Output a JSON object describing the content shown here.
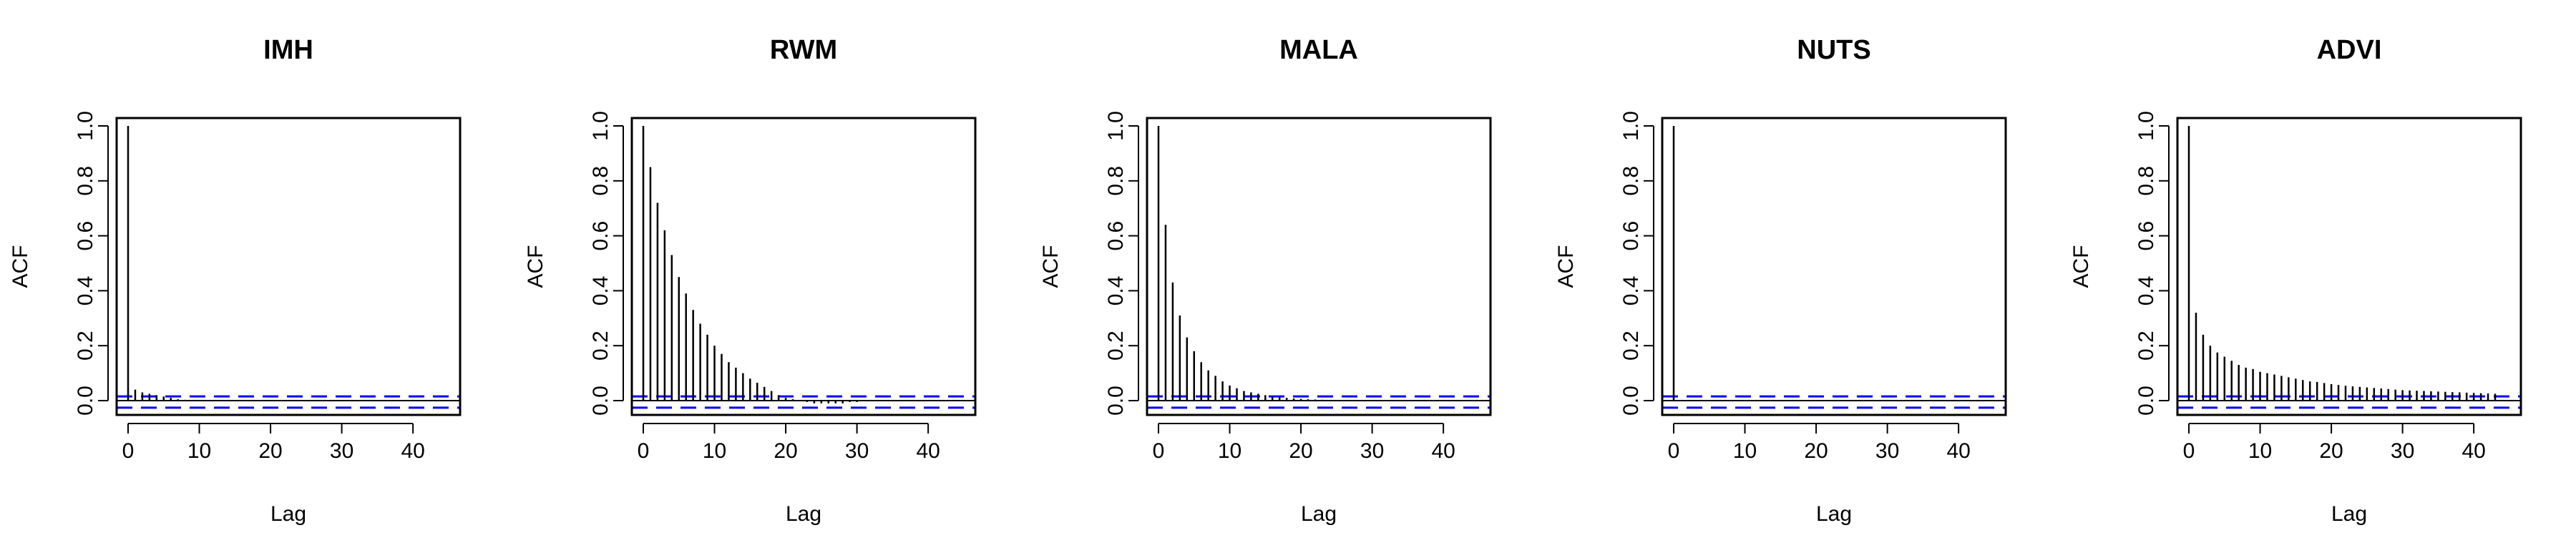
{
  "chart_data": [
    {
      "type": "bar",
      "title": "IMH",
      "xlabel": "Lag",
      "ylabel": "ACF",
      "xlim": [
        0,
        43
      ],
      "ylim": [
        0,
        1.0
      ],
      "x_ticks": [
        0,
        10,
        20,
        30,
        40
      ],
      "y_ticks": [
        0.0,
        0.2,
        0.4,
        0.6,
        0.8,
        1.0
      ],
      "confidence_band": 0.01,
      "lags": [
        0,
        1,
        2,
        3,
        4,
        5,
        6,
        7,
        8,
        9,
        10,
        11,
        12,
        13,
        14,
        15,
        16,
        17,
        18,
        19,
        20,
        21,
        22,
        23,
        24,
        25,
        26,
        27,
        28,
        29,
        30,
        31,
        32,
        33,
        34,
        35,
        36,
        37,
        38,
        39,
        40,
        41,
        42,
        43
      ],
      "values": [
        1.0,
        0.04,
        0.03,
        0.025,
        0.02,
        0.015,
        0.01,
        0.005,
        0.003,
        0.002,
        0.0,
        0.0,
        0.0,
        0.0,
        0.0,
        0.0,
        0.0,
        0.0,
        0.0,
        0.0,
        0.0,
        0.0,
        0.0,
        0.0,
        0.0,
        0.0,
        0.0,
        0.0,
        0.0,
        0.0,
        0.0,
        0.0,
        0.0,
        0.0,
        0.0,
        0.0,
        0.0,
        0.0,
        0.0,
        0.0,
        0.0,
        0.0,
        0.0,
        0.0
      ],
      "colors": {
        "bars": "#000000",
        "band": "#0000ff",
        "zero": "#000000"
      }
    },
    {
      "type": "bar",
      "title": "RWM",
      "xlabel": "Lag",
      "ylabel": "ACF",
      "xlim": [
        0,
        43
      ],
      "ylim": [
        0,
        1.0
      ],
      "x_ticks": [
        0,
        10,
        20,
        30,
        40
      ],
      "y_ticks": [
        0.0,
        0.2,
        0.4,
        0.6,
        0.8,
        1.0
      ],
      "confidence_band": 0.01,
      "lags": [
        0,
        1,
        2,
        3,
        4,
        5,
        6,
        7,
        8,
        9,
        10,
        11,
        12,
        13,
        14,
        15,
        16,
        17,
        18,
        19,
        20,
        21,
        22,
        23,
        24,
        25,
        26,
        27,
        28,
        29,
        30,
        31,
        32,
        33,
        34,
        35,
        36,
        37,
        38,
        39,
        40,
        41,
        42,
        43
      ],
      "values": [
        1.0,
        0.85,
        0.72,
        0.62,
        0.53,
        0.45,
        0.39,
        0.33,
        0.28,
        0.24,
        0.2,
        0.17,
        0.14,
        0.12,
        0.1,
        0.08,
        0.065,
        0.05,
        0.035,
        0.02,
        0.01,
        0.005,
        0.0,
        -0.005,
        -0.01,
        -0.01,
        -0.01,
        -0.01,
        -0.01,
        -0.005,
        -0.005,
        0.0,
        0.0,
        0.0,
        0.0,
        0.0,
        0.0,
        0.0,
        0.0,
        0.0,
        0.0,
        0.0,
        0.0,
        0.0
      ],
      "colors": {
        "bars": "#000000",
        "band": "#0000ff",
        "zero": "#000000"
      }
    },
    {
      "type": "bar",
      "title": "MALA",
      "xlabel": "Lag",
      "ylabel": "ACF",
      "xlim": [
        0,
        43
      ],
      "ylim": [
        0,
        1.0
      ],
      "x_ticks": [
        0,
        10,
        20,
        30,
        40
      ],
      "y_ticks": [
        0.0,
        0.2,
        0.4,
        0.6,
        0.8,
        1.0
      ],
      "confidence_band": 0.01,
      "lags": [
        0,
        1,
        2,
        3,
        4,
        5,
        6,
        7,
        8,
        9,
        10,
        11,
        12,
        13,
        14,
        15,
        16,
        17,
        18,
        19,
        20,
        21,
        22,
        23,
        24,
        25,
        26,
        27,
        28,
        29,
        30,
        31,
        32,
        33,
        34,
        35,
        36,
        37,
        38,
        39,
        40,
        41,
        42,
        43
      ],
      "values": [
        1.0,
        0.64,
        0.43,
        0.31,
        0.23,
        0.18,
        0.14,
        0.11,
        0.09,
        0.07,
        0.055,
        0.045,
        0.035,
        0.03,
        0.025,
        0.02,
        0.015,
        0.012,
        0.01,
        0.008,
        0.006,
        0.005,
        0.004,
        0.003,
        0.002,
        0.002,
        0.001,
        0.0,
        0.0,
        0.0,
        0.0,
        0.0,
        0.0,
        0.0,
        0.0,
        0.0,
        0.0,
        0.0,
        0.0,
        0.0,
        0.0,
        0.0,
        0.0,
        0.0
      ],
      "colors": {
        "bars": "#000000",
        "band": "#0000ff",
        "zero": "#000000"
      }
    },
    {
      "type": "bar",
      "title": "NUTS",
      "xlabel": "Lag",
      "ylabel": "ACF",
      "xlim": [
        0,
        43
      ],
      "ylim": [
        0,
        1.0
      ],
      "x_ticks": [
        0,
        10,
        20,
        30,
        40
      ],
      "y_ticks": [
        0.0,
        0.2,
        0.4,
        0.6,
        0.8,
        1.0
      ],
      "confidence_band": 0.01,
      "lags": [
        0,
        1,
        2,
        3,
        4,
        5,
        6,
        7,
        8,
        9,
        10,
        11,
        12,
        13,
        14,
        15,
        16,
        17,
        18,
        19,
        20,
        21,
        22,
        23,
        24,
        25,
        26,
        27,
        28,
        29,
        30,
        31,
        32,
        33,
        34,
        35,
        36,
        37,
        38,
        39,
        40,
        41,
        42,
        43
      ],
      "values": [
        1.0,
        0.0,
        0.0,
        0.0,
        0.0,
        0.0,
        0.0,
        0.0,
        0.0,
        0.0,
        0.0,
        0.0,
        0.0,
        0.0,
        0.0,
        0.0,
        0.0,
        0.0,
        0.0,
        0.0,
        0.0,
        0.0,
        0.0,
        0.0,
        0.0,
        0.0,
        0.0,
        0.0,
        0.0,
        0.0,
        0.0,
        0.0,
        0.0,
        0.0,
        0.0,
        0.0,
        0.0,
        0.0,
        0.0,
        0.0,
        0.0,
        0.0,
        0.0,
        0.0
      ],
      "colors": {
        "bars": "#000000",
        "band": "#0000ff",
        "zero": "#000000"
      }
    },
    {
      "type": "bar",
      "title": "ADVI",
      "xlabel": "Lag",
      "ylabel": "ACF",
      "xlim": [
        0,
        43
      ],
      "ylim": [
        0,
        1.0
      ],
      "x_ticks": [
        0,
        10,
        20,
        30,
        40
      ],
      "y_ticks": [
        0.0,
        0.2,
        0.4,
        0.6,
        0.8,
        1.0
      ],
      "confidence_band": 0.01,
      "lags": [
        0,
        1,
        2,
        3,
        4,
        5,
        6,
        7,
        8,
        9,
        10,
        11,
        12,
        13,
        14,
        15,
        16,
        17,
        18,
        19,
        20,
        21,
        22,
        23,
        24,
        25,
        26,
        27,
        28,
        29,
        30,
        31,
        32,
        33,
        34,
        35,
        36,
        37,
        38,
        39,
        40,
        41,
        42,
        43
      ],
      "values": [
        1.0,
        0.32,
        0.24,
        0.2,
        0.175,
        0.16,
        0.145,
        0.13,
        0.12,
        0.115,
        0.105,
        0.1,
        0.095,
        0.09,
        0.085,
        0.08,
        0.075,
        0.07,
        0.068,
        0.064,
        0.06,
        0.057,
        0.054,
        0.052,
        0.05,
        0.048,
        0.046,
        0.044,
        0.042,
        0.04,
        0.038,
        0.037,
        0.036,
        0.035,
        0.034,
        0.033,
        0.032,
        0.031,
        0.03,
        0.029,
        0.028,
        0.027,
        0.026,
        0.025
      ],
      "colors": {
        "bars": "#000000",
        "band": "#0000ff",
        "zero": "#000000"
      }
    }
  ]
}
